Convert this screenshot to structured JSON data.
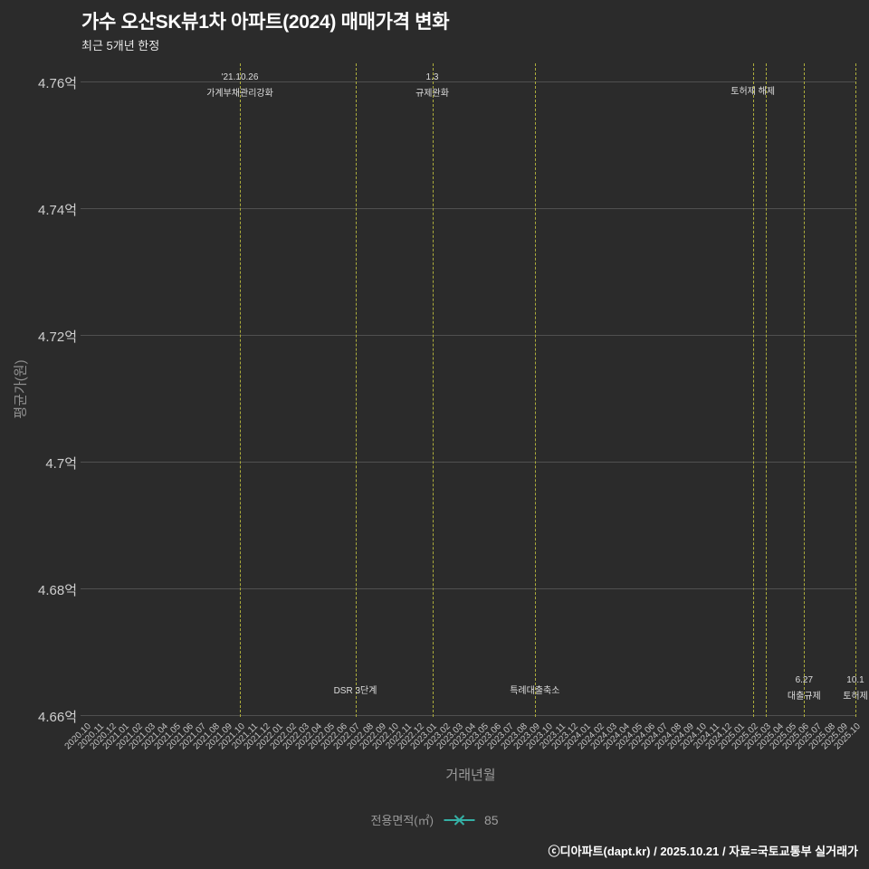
{
  "header": {
    "title": "가수 오산SK뷰1차 아파트(2024) 매매가격 변화",
    "subtitle": "최근 5개년 한정"
  },
  "chart_data": {
    "type": "line",
    "title": "가수 오산SK뷰1차 아파트(2024) 매매가격 변화",
    "subtitle": "최근 5개년 한정",
    "xlabel": "거래년월",
    "ylabel": "평균가(원)",
    "ylim": [
      4.655,
      4.765
    ],
    "grid": true,
    "y_ticks": [
      "4.76억",
      "4.74억",
      "4.72억",
      "4.7억",
      "4.68억",
      "4.66억"
    ],
    "y_tick_values": [
      4.76,
      4.74,
      4.72,
      4.7,
      4.68,
      4.66
    ],
    "x_categories": [
      "2020.10",
      "2020.11",
      "2020.12",
      "2021.01",
      "2021.02",
      "2021.03",
      "2021.04",
      "2021.05",
      "2021.06",
      "2021.07",
      "2021.08",
      "2021.09",
      "2021.10",
      "2021.11",
      "2021.12",
      "2022.01",
      "2022.02",
      "2022.03",
      "2022.04",
      "2022.05",
      "2022.06",
      "2022.07",
      "2022.08",
      "2022.09",
      "2022.10",
      "2022.11",
      "2022.12",
      "2023.01",
      "2023.02",
      "2023.03",
      "2023.04",
      "2023.05",
      "2023.06",
      "2023.07",
      "2023.08",
      "2023.09",
      "2023.10",
      "2023.11",
      "2023.12",
      "2024.01",
      "2024.02",
      "2024.03",
      "2024.04",
      "2024.05",
      "2024.06",
      "2024.07",
      "2024.08",
      "2024.09",
      "2024.10",
      "2024.11",
      "2024.12",
      "2025.01",
      "2025.02",
      "2025.03",
      "2025.04",
      "2025.05",
      "2025.06",
      "2025.07",
      "2025.08",
      "2025.09",
      "2025.10"
    ],
    "series": [
      {
        "name": "85",
        "marker_color": "#35b0a5",
        "values": []
      }
    ],
    "legend_label": "전용면적(㎡)",
    "legend_position": "bottom-center",
    "event_lines": [
      {
        "month": "2021.10",
        "index": 12,
        "top_labels": [
          "'21.10.26",
          "가계부채관리강화"
        ]
      },
      {
        "month": "2022.07",
        "index": 21,
        "bottom_labels": [
          "DSR 3단계"
        ]
      },
      {
        "month": "2023.01",
        "index": 27,
        "top_labels": [
          "1.3",
          "규제완화"
        ]
      },
      {
        "month": "2023.09",
        "index": 35,
        "bottom_labels": [
          "특례대출축소"
        ]
      },
      {
        "month": "2025.02",
        "index": 52,
        "top_labels": [
          "토허제 해제"
        ]
      },
      {
        "month": "2025.03",
        "index": 53
      },
      {
        "month": "2025.06",
        "index": 56,
        "bottom_labels": [
          "6.27",
          "대출규제"
        ]
      },
      {
        "month": "2025.10",
        "index": 60,
        "bottom_labels": [
          "10.1",
          "토허제"
        ]
      }
    ],
    "colors": {
      "background": "#2b2b2b",
      "grid": "#505050",
      "event_line": "#adad3b",
      "marker": "#35b0a5",
      "title": "#ffffff"
    }
  },
  "footer": {
    "credit": "ⓒ디아파트(dapt.kr) / 2025.10.21 / 자료=국토교통부 실거래가"
  }
}
